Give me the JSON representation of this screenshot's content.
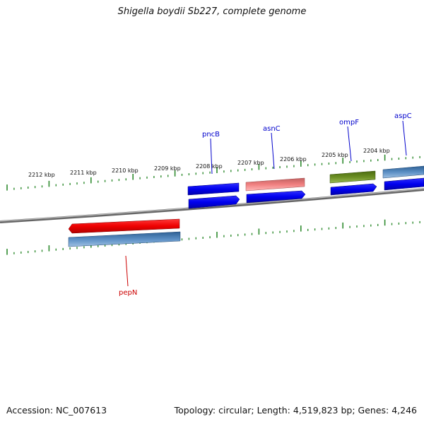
{
  "title": "Shigella boydii Sb227, complete genome",
  "accession": "Accession: NC_007613",
  "topology": "Topology: circular; Length: 4,519,823 bp; Genes: 4,246",
  "kbp_ticks": [
    "2212 kbp",
    "2211 kbp",
    "2210 kbp",
    "2209 kbp",
    "2208 kbp",
    "2207 kbp",
    "2206 kbp",
    "2205 kbp",
    "2204 kbp"
  ],
  "genes": [
    {
      "name": "pncB",
      "strand": "forward",
      "color": "#0000ee"
    },
    {
      "name": "asnC",
      "strand": "forward",
      "color": "#0000ee"
    },
    {
      "name": "ompF",
      "strand": "forward",
      "color": "#0000ee"
    },
    {
      "name": "aspC",
      "strand": "forward",
      "color": "#0000ee"
    },
    {
      "name": "pepN",
      "strand": "reverse",
      "color": "#cc0000"
    }
  ],
  "colors": {
    "cds_forward": "#0000ee",
    "cds_reverse": "#ee0000",
    "steel_blue": "#4a7eb2",
    "salmon": "#f08080",
    "olive": "#6b8e23",
    "backbone": "#888888",
    "tick": "#2e8b2e"
  }
}
